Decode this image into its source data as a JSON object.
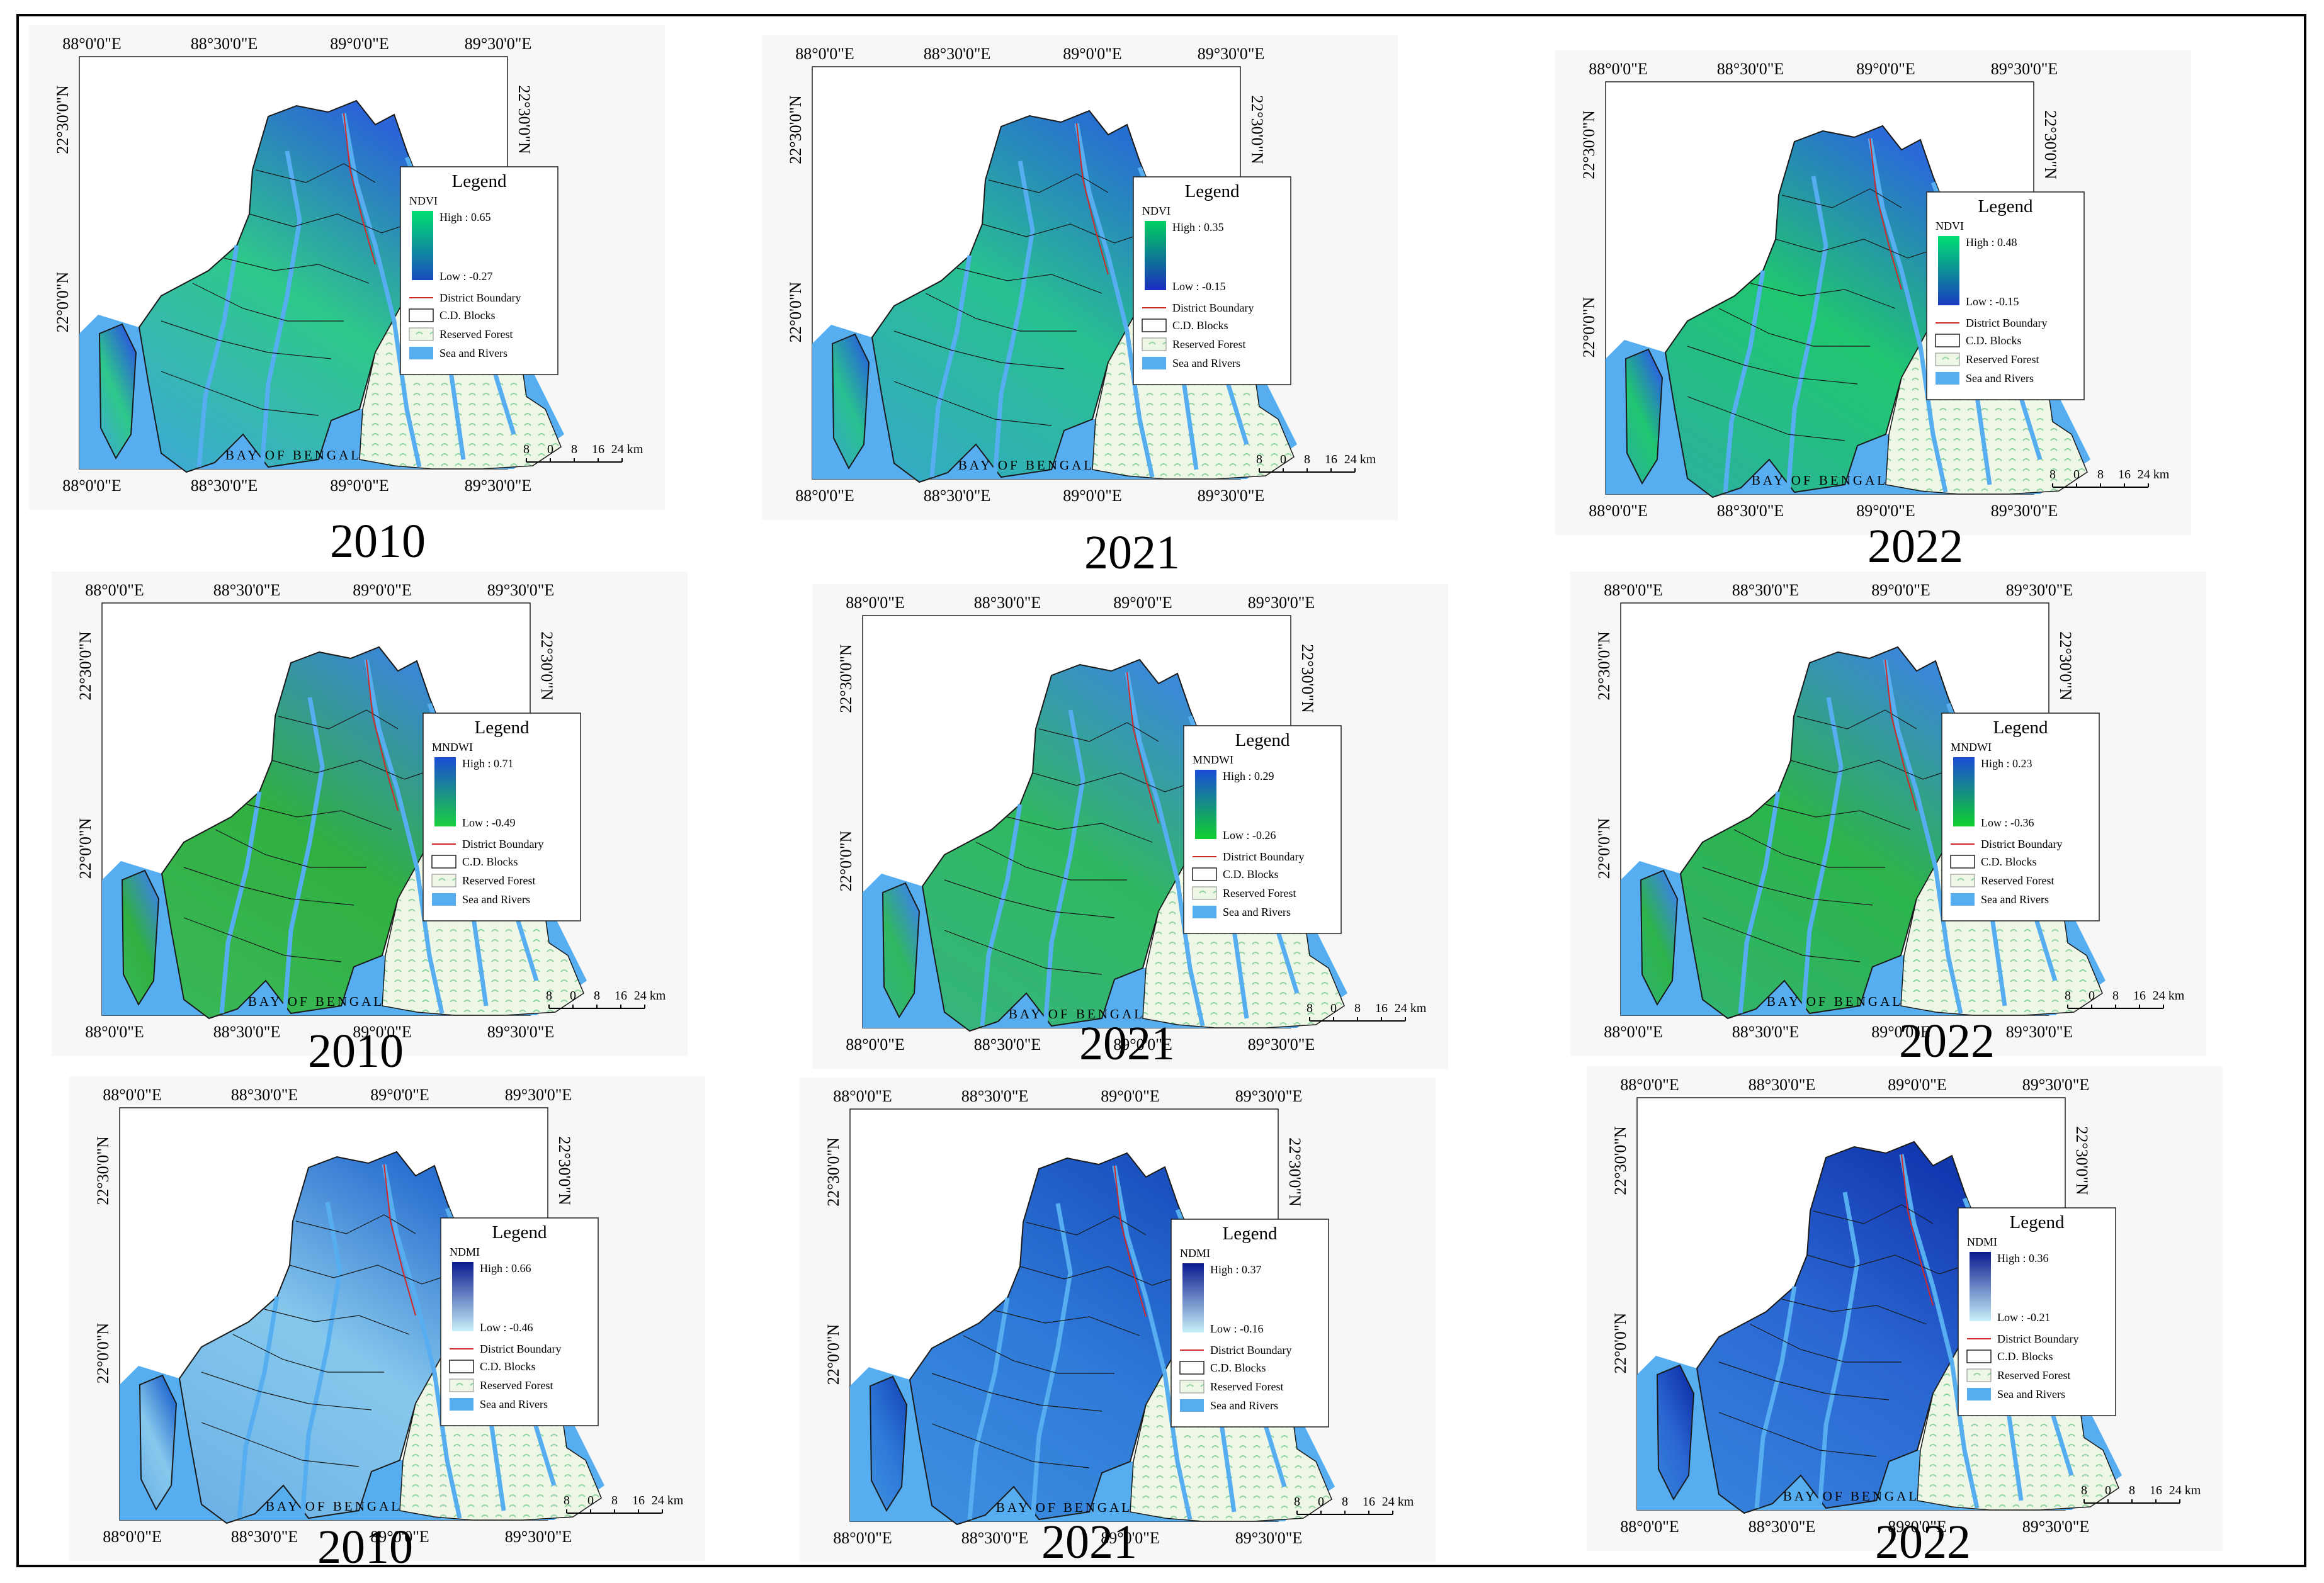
{
  "figure": {
    "bay_label": "BAY OF BENGAL",
    "x_ticks": [
      "88°0'0\"E",
      "88°30'0\"E",
      "89°0'0\"E",
      "89°30'0\"E"
    ],
    "y_ticks": [
      "22°30'0\"N",
      "22°0'0\"N"
    ],
    "legend": {
      "title": "Legend",
      "district_boundary": "District Boundary",
      "cd_blocks": "C.D. Blocks",
      "reserved_forest": "Reserved Forest",
      "sea_rivers": "Sea and Rivers"
    },
    "scale_labels": [
      "8",
      "0",
      "8",
      "16",
      "24 km"
    ],
    "colors": {
      "sea": "#56aef0",
      "forest": "#eef7e6",
      "forest_hatch": "#8fd3a0",
      "boundary": "#1a1a1a",
      "district_boundary": "#d22828",
      "panel_bg": "#f7f7f7"
    }
  },
  "panels": [
    {
      "index": "NDVI",
      "year": "2010",
      "high": "High : 0.65",
      "low": "Low : -0.27",
      "ramp": [
        "#00e070",
        "#1a4cc0"
      ],
      "land": [
        "#2ec88a",
        "#3ea8d8",
        "#2a64d6"
      ]
    },
    {
      "index": "NDVI",
      "year": "2021",
      "high": "High : 0.35",
      "low": "Low : -0.15",
      "ramp": [
        "#00d060",
        "#1a2cc0"
      ],
      "land": [
        "#28c090",
        "#36a8c8",
        "#2870d0"
      ]
    },
    {
      "index": "NDVI",
      "year": "2022",
      "high": "High : 0.48",
      "low": "Low : -0.15",
      "ramp": [
        "#00e070",
        "#1a3cc0"
      ],
      "land": [
        "#20c670",
        "#2cb0a0",
        "#2a6ad8"
      ]
    },
    {
      "index": "MNDWI",
      "year": "2010",
      "high": "High : 0.71",
      "low": "Low : -0.49",
      "ramp": [
        "#1a4cd6",
        "#1ad040"
      ],
      "land": [
        "#30b040",
        "#3ab85a",
        "#3a88d0"
      ]
    },
    {
      "index": "MNDWI",
      "year": "2021",
      "high": "High : 0.29",
      "low": "Low : -0.26",
      "ramp": [
        "#1a4cd6",
        "#10d030"
      ],
      "land": [
        "#30b860",
        "#36b480",
        "#3a8ad6"
      ]
    },
    {
      "index": "MNDWI",
      "year": "2022",
      "high": "High : 0.23",
      "low": "Low : -0.36",
      "ramp": [
        "#1a4cd6",
        "#10d030"
      ],
      "land": [
        "#2cb44a",
        "#32b470",
        "#3a88d6"
      ]
    },
    {
      "index": "NDMI",
      "year": "2010",
      "high": "High : 0.66",
      "low": "Low : -0.46",
      "ramp": [
        "#0a1a90",
        "#c8f0f8"
      ],
      "land": [
        "#86c8ec",
        "#6ab0e6",
        "#2a70d0"
      ]
    },
    {
      "index": "NDMI",
      "year": "2021",
      "high": "High : 0.37",
      "low": "Low : -0.16",
      "ramp": [
        "#0a1a90",
        "#c8f0f8"
      ],
      "land": [
        "#2e7ad8",
        "#3e90e0",
        "#1a52c0"
      ]
    },
    {
      "index": "NDMI",
      "year": "2022",
      "high": "High : 0.36",
      "low": "Low : -0.21",
      "ramp": [
        "#0a1a90",
        "#c8f0f8"
      ],
      "land": [
        "#2a66d2",
        "#3684dc",
        "#1238b0"
      ]
    }
  ]
}
